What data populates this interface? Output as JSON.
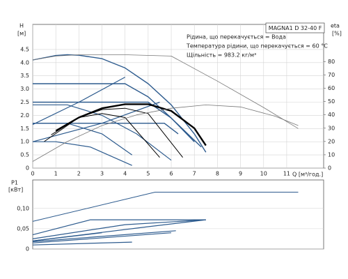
{
  "chart_data": [
    {
      "type": "line",
      "title": "MAGNA1 D 32-40 F",
      "annotations": [
        "Рідина, що перекачується = Вода",
        "Температура рідини, що перекачується = 60 °C",
        "Щільність = 983.2 кг/м³"
      ],
      "y_label": [
        "H",
        "[м]"
      ],
      "y2_label": [
        "eta",
        "[%]"
      ],
      "x_label": "Q [м³/год.]",
      "xlim": [
        0,
        12.6
      ],
      "xticks": [
        0,
        1,
        2,
        3,
        4,
        5,
        6,
        7,
        8,
        9,
        10,
        11
      ],
      "ylim": [
        0,
        5.45
      ],
      "yticks": [
        0,
        0.5,
        {
          "value": 1,
          "label": "1.0"
        },
        1.5,
        {
          "value": 2,
          "label": "2.0"
        },
        2.5,
        {
          "value": 3,
          "label": "3.0"
        },
        3.5,
        {
          "value": 4,
          "label": "4.0"
        },
        4.5
      ],
      "y2lim": [
        0,
        108
      ],
      "y2ticks": [
        0,
        10,
        20,
        30,
        40,
        50,
        60,
        70,
        80
      ],
      "grid": true,
      "series": [
        {
          "color": "#2d5b8e",
          "width": 1.4,
          "x": [
            0,
            1,
            1.5,
            2,
            3,
            4,
            5,
            6,
            7,
            7.5
          ],
          "values": [
            4.1,
            4.27,
            4.3,
            4.28,
            4.15,
            3.8,
            3.2,
            2.4,
            1.3,
            0.6
          ]
        },
        {
          "color": "#2d5b8e",
          "width": 1.4,
          "x": [
            0,
            4.0,
            5.0,
            6.0,
            7.3
          ],
          "values": [
            3.2,
            3.2,
            2.7,
            1.9,
            0.8
          ]
        },
        {
          "color": "#2d5b8e",
          "width": 1.4,
          "x": [
            0,
            5.0,
            6.0,
            7.0
          ],
          "values": [
            2.5,
            2.5,
            1.9,
            1.0
          ]
        },
        {
          "color": "#2d5b8e",
          "width": 1.4,
          "x": [
            0,
            5.7,
            6.3
          ],
          "values": [
            1.7,
            1.7,
            1.3
          ]
        },
        {
          "color": "#2d5b8e",
          "width": 1.2,
          "x": [
            0,
            2,
            4
          ],
          "values": [
            1.65,
            2.5,
            3.45
          ]
        },
        {
          "color": "#2d5b8e",
          "width": 1.2,
          "x": [
            0,
            3,
            5.5
          ],
          "values": [
            1.0,
            1.7,
            2.5
          ]
        },
        {
          "color": "#2d5b8e",
          "width": 1.2,
          "x": [
            0,
            1.5,
            3,
            4.5,
            6
          ],
          "values": [
            2.4,
            2.4,
            2.0,
            1.3,
            0.3
          ]
        },
        {
          "color": "#2d5b8e",
          "width": 1.2,
          "x": [
            0,
            1.5,
            3,
            4.3
          ],
          "values": [
            1.7,
            1.7,
            1.3,
            0.5
          ]
        },
        {
          "color": "#2d5b8e",
          "width": 1.2,
          "x": [
            0,
            1,
            2.5,
            4.3
          ],
          "values": [
            1.0,
            1.0,
            0.8,
            0.1
          ]
        },
        {
          "color": "#000000",
          "width": 2.4,
          "axis": "y2",
          "x": [
            1,
            2,
            3,
            4,
            5,
            6,
            7,
            7.5
          ],
          "values": [
            28,
            38,
            45,
            48,
            48,
            43,
            30,
            17
          ]
        },
        {
          "color": "#000000",
          "width": 1,
          "axis": "y2",
          "x": [
            0.5,
            2,
            3,
            4,
            5,
            6.5
          ],
          "values": [
            20,
            38,
            44,
            45,
            41,
            8
          ]
        },
        {
          "color": "#000000",
          "width": 1,
          "axis": "y2",
          "x": [
            0.8,
            2,
            3,
            4,
            5.5
          ],
          "values": [
            25,
            38,
            41,
            38,
            8
          ]
        },
        {
          "color": "#777777",
          "width": 0.8,
          "axis": "y2",
          "x": [
            0,
            1.5,
            3,
            4.5,
            6,
            7.5,
            9,
            10.5,
            11.5
          ],
          "values": [
            5,
            20,
            32,
            40,
            45,
            47.5,
            46,
            39,
            32
          ]
        },
        {
          "color": "#777777",
          "width": 0.8,
          "x": [
            0,
            1,
            2,
            4,
            6,
            8,
            10,
            11.5
          ],
          "values": [
            4.1,
            4.25,
            4.3,
            4.3,
            4.25,
            3.3,
            2.3,
            1.5
          ]
        }
      ]
    },
    {
      "type": "line",
      "y_label": [
        "P1",
        "[кВт]"
      ],
      "xlim": [
        0,
        12.6
      ],
      "ylim": [
        0,
        0.17
      ],
      "yticks": [
        0,
        {
          "value": 0.05,
          "label": "0,05"
        },
        {
          "value": 0.1,
          "label": "0,10"
        }
      ],
      "grid": true,
      "series": [
        {
          "color": "#2d5b8e",
          "width": 1,
          "x": [
            0,
            5.3,
            11.5
          ],
          "values": [
            0.068,
            0.14,
            0.14
          ]
        },
        {
          "color": "#2d5b8e",
          "width": 1.2,
          "x": [
            0,
            2.5,
            7.5
          ],
          "values": [
            0.035,
            0.072,
            0.072
          ]
        },
        {
          "color": "#2d5b8e",
          "width": 1.2,
          "x": [
            0,
            4,
            7.5
          ],
          "values": [
            0.025,
            0.06,
            0.072
          ]
        },
        {
          "color": "#2d5b8e",
          "width": 1.2,
          "x": [
            0,
            5,
            7.5
          ],
          "values": [
            0.02,
            0.055,
            0.072
          ]
        },
        {
          "color": "#2d5b8e",
          "width": 1.2,
          "x": [
            0,
            6.2
          ],
          "values": [
            0.018,
            0.045
          ]
        },
        {
          "color": "#2d5b8e",
          "width": 1.2,
          "x": [
            0,
            6
          ],
          "values": [
            0.015,
            0.04
          ]
        },
        {
          "color": "#2d5b8e",
          "width": 1.2,
          "x": [
            0,
            3
          ],
          "values": [
            0.02,
            0.04
          ]
        },
        {
          "color": "#2d5b8e",
          "width": 1.2,
          "x": [
            0,
            4.3
          ],
          "values": [
            0.01,
            0.017
          ]
        }
      ]
    }
  ]
}
